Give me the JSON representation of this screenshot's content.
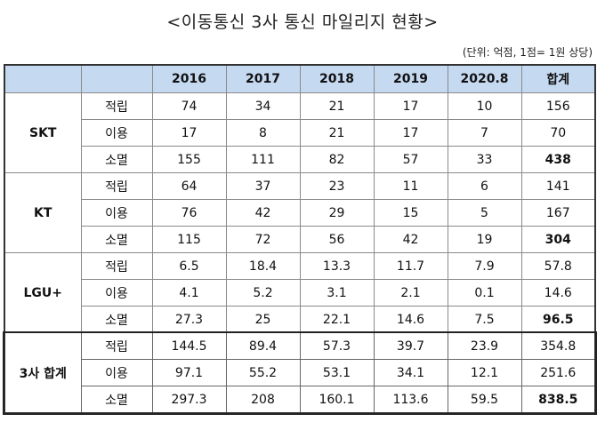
{
  "title": "<이동통신 3사 통신 마일리지 현황>",
  "note": "(단위: 억점, 1점= 1원 상당)",
  "table": {
    "headers": [
      "",
      "",
      "2016",
      "2017",
      "2018",
      "2019",
      "2020.8",
      "합계"
    ],
    "groups": [
      {
        "carrier": "SKT",
        "rows": [
          {
            "type": "적립",
            "values": [
              "74",
              "34",
              "21",
              "17",
              "10",
              "156"
            ]
          },
          {
            "type": "이용",
            "values": [
              "17",
              "8",
              "21",
              "17",
              "7",
              "70"
            ]
          },
          {
            "type": "소멸",
            "values": [
              "155",
              "111",
              "82",
              "57",
              "33",
              "438"
            ]
          }
        ]
      },
      {
        "carrier": "KT",
        "rows": [
          {
            "type": "적립",
            "values": [
              "64",
              "37",
              "23",
              "11",
              "6",
              "141"
            ]
          },
          {
            "type": "이용",
            "values": [
              "76",
              "42",
              "29",
              "15",
              "5",
              "167"
            ]
          },
          {
            "type": "소멸",
            "values": [
              "115",
              "72",
              "56",
              "42",
              "19",
              "304"
            ]
          }
        ]
      },
      {
        "carrier": "LGU+",
        "rows": [
          {
            "type": "적립",
            "values": [
              "6.5",
              "18.4",
              "13.3",
              "11.7",
              "7.9",
              "57.8"
            ]
          },
          {
            "type": "이용",
            "values": [
              "4.1",
              "5.2",
              "3.1",
              "2.1",
              "0.1",
              "14.6"
            ]
          },
          {
            "type": "소멸",
            "values": [
              "27.3",
              "25",
              "22.1",
              "14.6",
              "7.5",
              "96.5"
            ]
          }
        ]
      },
      {
        "carrier": "3사 합계",
        "rows": [
          {
            "type": "적립",
            "values": [
              "144.5",
              "89.4",
              "57.3",
              "39.7",
              "23.9",
              "354.8"
            ]
          },
          {
            "type": "이용",
            "values": [
              "97.1",
              "55.2",
              "53.1",
              "34.1",
              "12.1",
              "251.6"
            ]
          },
          {
            "type": "소멸",
            "values": [
              "297.3",
              "208",
              "160.1",
              "113.6",
              "59.5",
              "838.5"
            ]
          }
        ]
      }
    ],
    "header_color": "#c5d9f1"
  }
}
